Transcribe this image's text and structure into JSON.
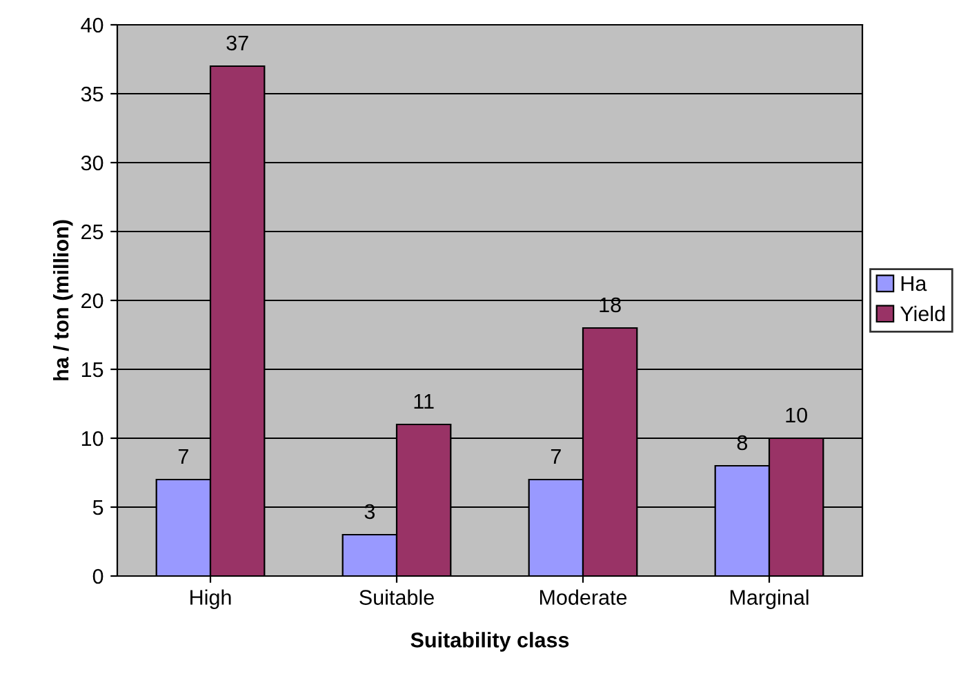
{
  "chart_data": {
    "type": "bar",
    "xlabel": "Suitability class",
    "ylabel": "ha / ton (million)",
    "categories": [
      "High",
      "Suitable",
      "Moderate",
      "Marginal"
    ],
    "series": [
      {
        "name": "Ha",
        "color": "#9999ff",
        "values": [
          7,
          3,
          7,
          8
        ]
      },
      {
        "name": "Yield",
        "color": "#993366",
        "values": [
          37,
          11,
          18,
          10
        ]
      }
    ],
    "ylim": [
      0,
      40
    ],
    "yticks": [
      0,
      5,
      10,
      15,
      20,
      25,
      30,
      35,
      40
    ],
    "grid": "y",
    "legend": "right",
    "data_labels": true
  }
}
